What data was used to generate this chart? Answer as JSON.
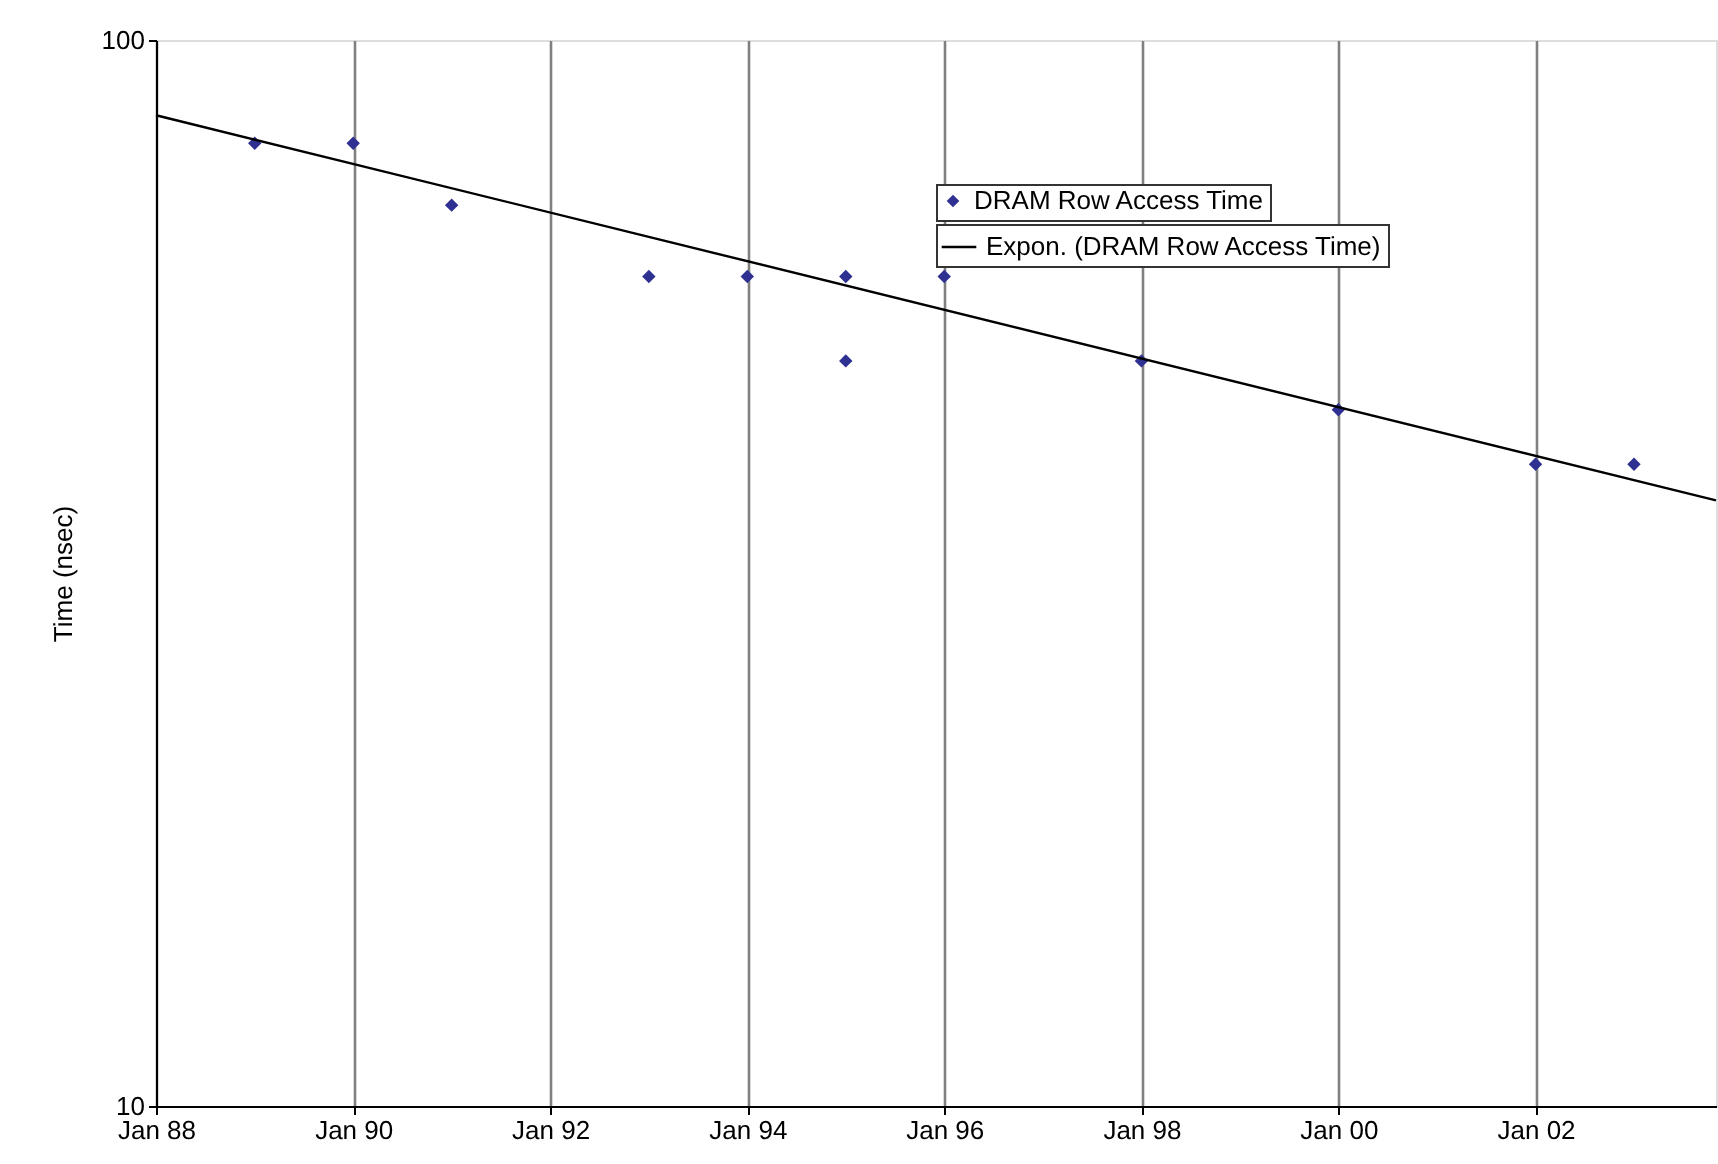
{
  "chart_data": {
    "type": "scatter",
    "ylabel": "Time (nsec)",
    "log": "y",
    "grid": "x",
    "legend": "top right",
    "x": [
      "1989-01",
      "1990-01",
      "1991-01",
      "1993-01",
      "1994-01",
      "1995-01",
      "1995-01",
      "1996-01",
      "1998-01",
      "2000-01",
      "2002-01",
      "2003-01"
    ],
    "series": [
      {
        "name": "DRAM Row Access Time",
        "color": "#2e3192",
        "marker": "diamond",
        "values": [
          80,
          80,
          70,
          60,
          60,
          60,
          50,
          60,
          50,
          45,
          40,
          40
        ]
      },
      {
        "name": "Expon. (DRAM Row Access Time)",
        "color": "#000000",
        "type": "line",
        "line_style": "solid",
        "x": [
          "1988-01",
          "2003-11"
        ],
        "values": [
          85,
          37
        ]
      }
    ],
    "xlim": [
      "1988-01",
      "2003-11"
    ],
    "ylim": [
      10,
      100
    ],
    "yticks": [
      10,
      100
    ],
    "xticks": [
      {
        "value": "1988-01",
        "label": "Jan 88"
      },
      {
        "value": "1990-01",
        "label": "Jan 90"
      },
      {
        "value": "1992-01",
        "label": "Jan 92"
      },
      {
        "value": "1994-01",
        "label": "Jan 94"
      },
      {
        "value": "1996-01",
        "label": "Jan 96"
      },
      {
        "value": "1998-01",
        "label": "Jan 98"
      },
      {
        "value": "2000-01",
        "label": "Jan 00"
      },
      {
        "value": "2002-01",
        "label": "Jan 02"
      }
    ]
  }
}
